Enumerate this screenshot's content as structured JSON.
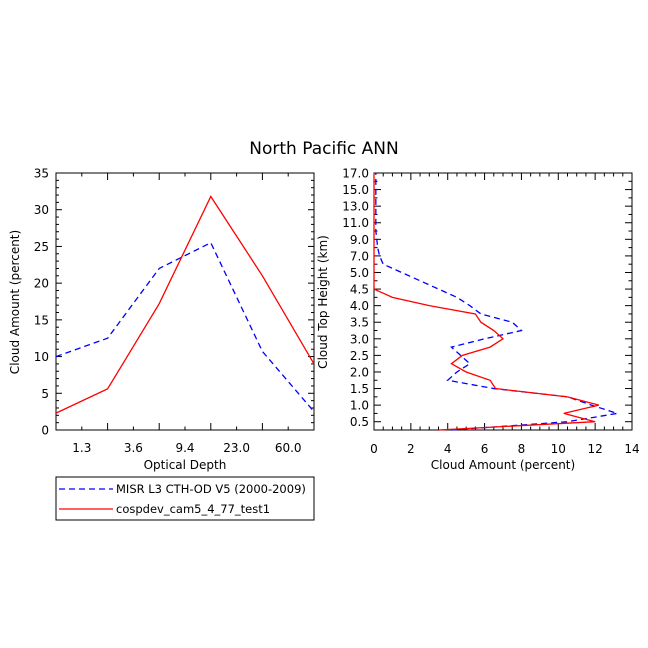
{
  "title": "North Pacific ANN",
  "colors": {
    "series1": "#0000ff",
    "series2": "#ff0000",
    "axis": "#000000"
  },
  "legend": [
    {
      "label": "MISR L3 CTH-OD V5 (2000-2009)",
      "style": "dashed",
      "color": "#0000ff"
    },
    {
      "label": "cospdev_cam5_4_77_test1",
      "style": "solid",
      "color": "#ff0000"
    }
  ],
  "chart_data": [
    {
      "type": "line",
      "xlabel": "Optical Depth",
      "ylabel": "Cloud Amount (percent)",
      "x_tick_labels": [
        "1.3",
        "3.6",
        "9.4",
        "23.0",
        "60.0"
      ],
      "x_index_range": [
        0,
        5
      ],
      "ylim": [
        0,
        35
      ],
      "y_ticks": [
        0,
        5,
        10,
        15,
        20,
        25,
        30,
        35
      ],
      "series": [
        {
          "name": "MISR L3 CTH-OD V5 (2000-2009)",
          "x": [
            0,
            1,
            2,
            3,
            4,
            5
          ],
          "values": [
            10.0,
            12.5,
            22.0,
            25.5,
            10.7,
            2.5
          ]
        },
        {
          "name": "cospdev_cam5_4_77_test1",
          "x": [
            0,
            1,
            2,
            3,
            4,
            5
          ],
          "values": [
            2.3,
            5.6,
            17.2,
            31.8,
            21.0,
            9.0
          ]
        }
      ]
    },
    {
      "type": "line",
      "orientation": "horizontal",
      "xlabel": "Cloud Amount (percent)",
      "ylabel": "Cloud Top Height (km)",
      "xlim": [
        0,
        14
      ],
      "x_ticks": [
        0,
        2,
        4,
        6,
        8,
        10,
        12,
        14
      ],
      "y_tick_labels": [
        "0.5",
        "1.0",
        "1.5",
        "2.0",
        "2.5",
        "3.0",
        "3.5",
        "4.0",
        "4.5",
        "5.0",
        "7.0",
        "9.0",
        "11.0",
        "13.0",
        "15.0",
        "17.0"
      ],
      "y_index_range": [
        0,
        15.5
      ],
      "series": [
        {
          "name": "MISR L3 CTH-OD V5 (2000-2009)",
          "y": [
            0,
            0.5,
            1,
            1.5,
            2,
            2.5,
            3,
            3.5,
            4,
            4.5,
            5,
            5.5,
            6,
            6.5,
            7,
            7.5,
            8,
            8.5,
            9,
            9.5,
            10,
            10.5,
            11,
            11.5,
            12,
            12.5,
            13,
            13.5,
            14,
            14.5,
            15,
            15.5
          ],
          "values": [
            4.2,
            10.5,
            13.2,
            11.8,
            10.5,
            6.5,
            4.0,
            4.5,
            5.2,
            4.7,
            4.2,
            6.0,
            8.0,
            7.5,
            5.8,
            5.2,
            4.5,
            3.5,
            2.5,
            1.5,
            0.5,
            0.3,
            0.2,
            0.15,
            0.1,
            0.1,
            0.1,
            0.1,
            0.1,
            0.1,
            0.1,
            0.1
          ]
        },
        {
          "name": "cospdev_cam5_4_77_test1",
          "y": [
            0,
            0.5,
            1,
            1.5,
            2,
            2.5,
            3,
            3.5,
            4,
            4.5,
            5,
            5.5,
            6,
            6.5,
            7,
            7.5,
            8,
            8.5,
            9,
            9.5,
            10,
            10.5,
            11,
            11.5,
            12,
            12.5,
            13,
            13.5,
            14,
            14.5,
            15,
            15.5
          ],
          "values": [
            3.5,
            12.0,
            10.3,
            12.2,
            10.5,
            6.6,
            6.3,
            5.0,
            4.2,
            4.8,
            6.3,
            7.0,
            6.5,
            5.8,
            5.5,
            3.0,
            1.0,
            0.0,
            0.0,
            0.0,
            0.0,
            0.0,
            0.0,
            0.0,
            0.0,
            0.0,
            0.0,
            0.0,
            0.0,
            0.0,
            0.0,
            0.0
          ]
        }
      ]
    }
  ]
}
